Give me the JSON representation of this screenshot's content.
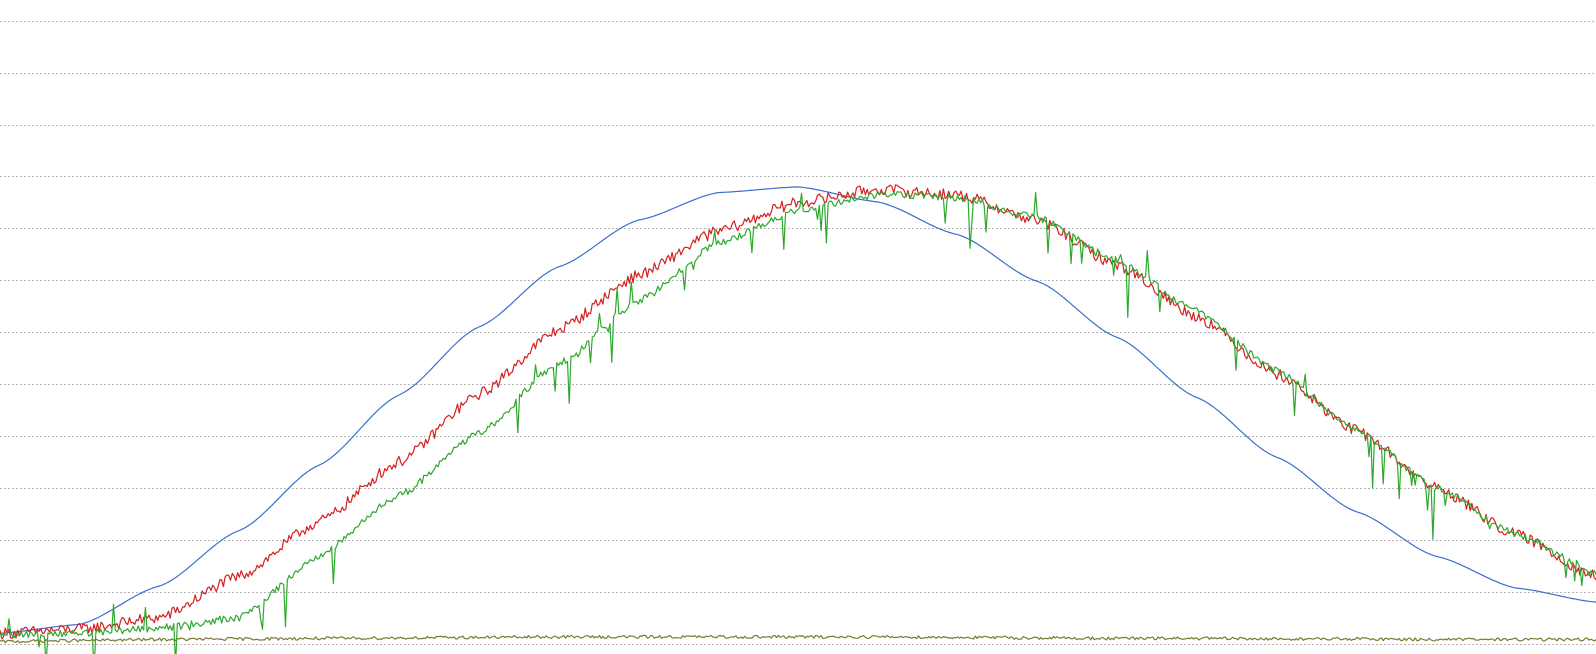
{
  "chart_data": {
    "type": "line",
    "title": "",
    "xlabel": "",
    "ylabel": "",
    "grid": true,
    "xlim": [
      0,
      1000
    ],
    "ylim": [
      -2,
      124
    ],
    "yticks": [
      0,
      10,
      20,
      30,
      40,
      50,
      60,
      70,
      80,
      90,
      100,
      110,
      120
    ],
    "series": [
      {
        "name": "blue",
        "color": "#3a6fd0",
        "x": [
          0,
          50,
          100,
          150,
          200,
          250,
          300,
          350,
          400,
          450,
          500,
          550,
          600,
          650,
          700,
          750,
          800,
          850,
          900,
          950,
          1000
        ],
        "y": [
          2.0,
          3.7,
          11.1,
          21.8,
          34.4,
          47.9,
          61.0,
          72.6,
          81.6,
          86.9,
          88.0,
          85.1,
          78.8,
          69.8,
          59.0,
          47.4,
          35.9,
          25.4,
          16.8,
          10.7,
          8.0
        ]
      },
      {
        "name": "red",
        "color": "#d42020",
        "x": [
          0,
          50,
          100,
          150,
          200,
          250,
          300,
          350,
          400,
          450,
          500,
          550,
          600,
          650,
          700,
          750,
          800,
          850,
          900,
          950,
          1000
        ],
        "y": [
          2.0,
          2.8,
          5.0,
          13.0,
          23.5,
          35.0,
          48.0,
          60.5,
          71.0,
          79.5,
          85.0,
          87.5,
          86.5,
          81.5,
          73.0,
          63.0,
          52.0,
          41.0,
          30.0,
          21.0,
          13.0
        ]
      },
      {
        "name": "green",
        "color": "#2ea82e",
        "x": [
          0,
          50,
          100,
          150,
          200,
          250,
          300,
          350,
          400,
          450,
          500,
          550,
          600,
          650,
          700,
          750,
          800,
          850,
          900,
          950,
          1000
        ],
        "y": [
          1.5,
          2.0,
          3.0,
          5.0,
          17.0,
          28.5,
          40.5,
          54.0,
          66.0,
          77.0,
          83.5,
          86.5,
          86.0,
          82.0,
          74.0,
          64.0,
          52.5,
          41.0,
          30.0,
          21.0,
          14.0
        ]
      },
      {
        "name": "olive",
        "color": "#7a7a30",
        "x": [
          0,
          50,
          100,
          150,
          200,
          250,
          300,
          350,
          400,
          450,
          500,
          550,
          600,
          650,
          700,
          750,
          800,
          850,
          900,
          950,
          1000
        ],
        "y": [
          0.4,
          0.6,
          0.8,
          0.9,
          1.0,
          1.1,
          1.2,
          1.3,
          1.3,
          1.3,
          1.3,
          1.3,
          1.2,
          1.1,
          1.0,
          1.0,
          0.9,
          0.9,
          0.8,
          0.8,
          0.8
        ]
      }
    ]
  }
}
